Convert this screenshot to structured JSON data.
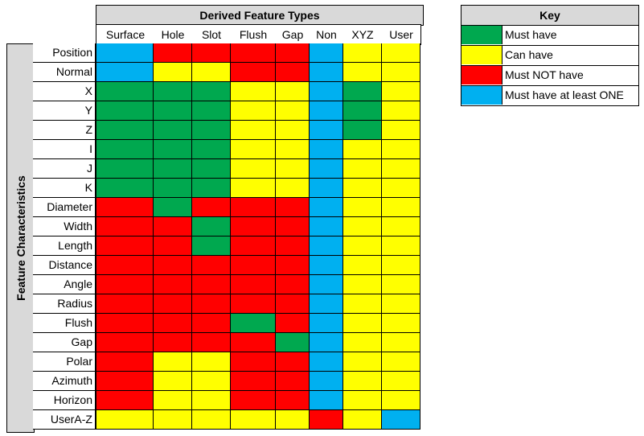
{
  "colors": {
    "must_have": "#00a84f",
    "can_have": "#ffff00",
    "must_not": "#ff0000",
    "at_least_one": "#00b0f0",
    "header_gray": "#d9d9d9"
  },
  "matrix": {
    "title": "Derived Feature Types",
    "side_label": "Feature Characteristics",
    "columns": [
      "Surface",
      "Hole",
      "Slot",
      "Flush",
      "Gap",
      "Non",
      "XYZ",
      "User"
    ],
    "rows": [
      {
        "label": "Position",
        "cells": [
          "B",
          "R",
          "R",
          "R",
          "R",
          "B",
          "Y",
          "Y"
        ]
      },
      {
        "label": "Normal",
        "cells": [
          "B",
          "Y",
          "Y",
          "R",
          "R",
          "B",
          "Y",
          "Y"
        ]
      },
      {
        "label": "X",
        "cells": [
          "G",
          "G",
          "G",
          "Y",
          "Y",
          "B",
          "G",
          "Y"
        ]
      },
      {
        "label": "Y",
        "cells": [
          "G",
          "G",
          "G",
          "Y",
          "Y",
          "B",
          "G",
          "Y"
        ]
      },
      {
        "label": "Z",
        "cells": [
          "G",
          "G",
          "G",
          "Y",
          "Y",
          "B",
          "G",
          "Y"
        ]
      },
      {
        "label": "I",
        "cells": [
          "G",
          "G",
          "G",
          "Y",
          "Y",
          "B",
          "Y",
          "Y"
        ]
      },
      {
        "label": "J",
        "cells": [
          "G",
          "G",
          "G",
          "Y",
          "Y",
          "B",
          "Y",
          "Y"
        ]
      },
      {
        "label": "K",
        "cells": [
          "G",
          "G",
          "G",
          "Y",
          "Y",
          "B",
          "Y",
          "Y"
        ]
      },
      {
        "label": "Diameter",
        "cells": [
          "R",
          "G",
          "R",
          "R",
          "R",
          "B",
          "Y",
          "Y"
        ]
      },
      {
        "label": "Width",
        "cells": [
          "R",
          "R",
          "G",
          "R",
          "R",
          "B",
          "Y",
          "Y"
        ]
      },
      {
        "label": "Length",
        "cells": [
          "R",
          "R",
          "G",
          "R",
          "R",
          "B",
          "Y",
          "Y"
        ]
      },
      {
        "label": "Distance",
        "cells": [
          "R",
          "R",
          "R",
          "R",
          "R",
          "B",
          "Y",
          "Y"
        ]
      },
      {
        "label": "Angle",
        "cells": [
          "R",
          "R",
          "R",
          "R",
          "R",
          "B",
          "Y",
          "Y"
        ]
      },
      {
        "label": "Radius",
        "cells": [
          "R",
          "R",
          "R",
          "R",
          "R",
          "B",
          "Y",
          "Y"
        ]
      },
      {
        "label": "Flush",
        "cells": [
          "R",
          "R",
          "R",
          "G",
          "R",
          "B",
          "Y",
          "Y"
        ]
      },
      {
        "label": "Gap",
        "cells": [
          "R",
          "R",
          "R",
          "R",
          "G",
          "B",
          "Y",
          "Y"
        ]
      },
      {
        "label": "Polar",
        "cells": [
          "R",
          "Y",
          "Y",
          "R",
          "R",
          "B",
          "Y",
          "Y"
        ]
      },
      {
        "label": "Azimuth",
        "cells": [
          "R",
          "Y",
          "Y",
          "R",
          "R",
          "B",
          "Y",
          "Y"
        ]
      },
      {
        "label": "Horizon",
        "cells": [
          "R",
          "Y",
          "Y",
          "R",
          "R",
          "B",
          "Y",
          "Y"
        ]
      },
      {
        "label": "UserA-Z",
        "cells": [
          "Y",
          "Y",
          "Y",
          "Y",
          "Y",
          "R",
          "Y",
          "B"
        ]
      }
    ]
  },
  "key": {
    "title": "Key",
    "items": [
      {
        "code": "G",
        "label": "Must have"
      },
      {
        "code": "Y",
        "label": "Can have"
      },
      {
        "code": "R",
        "label": "Must NOT have"
      },
      {
        "code": "B",
        "label": "Must have at least ONE"
      }
    ]
  }
}
